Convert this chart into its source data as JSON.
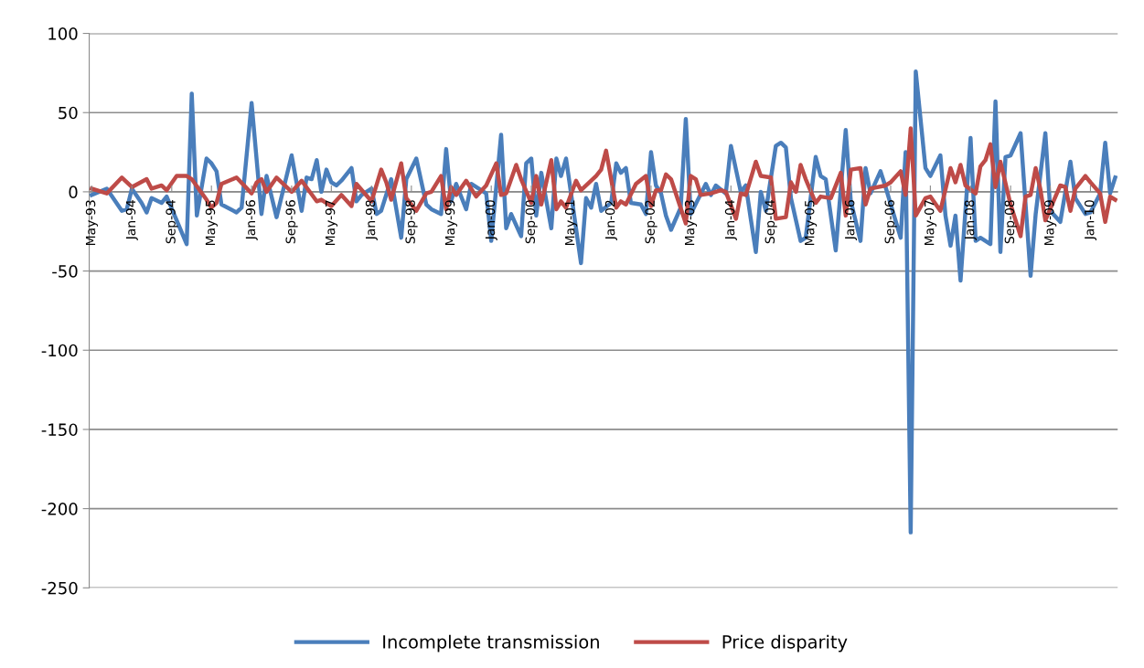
{
  "chart_data": {
    "type": "line",
    "series": [
      {
        "name": "Incomplete transmission",
        "color": "#4a7ebb",
        "x": [
          "1993-05",
          "1993-08",
          "1993-11",
          "1993-12",
          "1994-01",
          "1994-03",
          "1994-04",
          "1994-05",
          "1994-07",
          "1994-08",
          "1994-12",
          "1995-01",
          "1995-02",
          "1995-04",
          "1995-05",
          "1995-06",
          "1995-07",
          "1995-10",
          "1995-11",
          "1996-01",
          "1996-03",
          "1996-04",
          "1996-06",
          "1996-09",
          "1996-11",
          "1996-12",
          "1997-01",
          "1997-02",
          "1997-03",
          "1997-04",
          "1997-05",
          "1997-06",
          "1997-07",
          "1997-09",
          "1997-10",
          "1997-11",
          "1998-01",
          "1998-02",
          "1998-03",
          "1998-05",
          "1998-07",
          "1998-08",
          "1998-10",
          "1998-12",
          "1999-01",
          "1999-03",
          "1999-04",
          "1999-05",
          "1999-06",
          "1999-08",
          "1999-09",
          "1999-12",
          "2000-01",
          "2000-03",
          "2000-04",
          "2000-05",
          "2000-07",
          "2000-08",
          "2000-09",
          "2000-10",
          "2000-11",
          "2001-01",
          "2001-02",
          "2001-03",
          "2001-04",
          "2001-07",
          "2001-08",
          "2001-09",
          "2001-10",
          "2001-11",
          "2002-01",
          "2002-02",
          "2002-03",
          "2002-04",
          "2002-05",
          "2002-07",
          "2002-08",
          "2002-09",
          "2002-10",
          "2002-11",
          "2002-12",
          "2003-01",
          "2003-03",
          "2003-04",
          "2003-05",
          "2003-08",
          "2003-09",
          "2003-10",
          "2003-12",
          "2004-01",
          "2004-03",
          "2004-04",
          "2004-05",
          "2004-06",
          "2004-07",
          "2004-08",
          "2004-10",
          "2004-11",
          "2004-12",
          "2005-01",
          "2005-03",
          "2005-04",
          "2005-06",
          "2005-07",
          "2005-08",
          "2005-10",
          "2005-12",
          "2006-01",
          "2006-03",
          "2006-04",
          "2006-05",
          "2006-07",
          "2006-08",
          "2006-11",
          "2006-12",
          "2007-01",
          "2007-02",
          "2007-04",
          "2007-05",
          "2007-07",
          "2007-08",
          "2007-09",
          "2007-10",
          "2007-11",
          "2008-01",
          "2008-02",
          "2008-03",
          "2008-05",
          "2008-06",
          "2008-07",
          "2008-08",
          "2008-09",
          "2008-11",
          "2009-01",
          "2009-02",
          "2009-04",
          "2009-05",
          "2009-07",
          "2009-09",
          "2009-10",
          "2009-12",
          "2010-01",
          "2010-03",
          "2010-04",
          "2010-05",
          "2010-06"
        ],
        "values": [
          -2,
          2,
          -12,
          -11,
          2,
          -7,
          -13,
          -4,
          -7,
          -3,
          -33,
          62,
          -15,
          21,
          18,
          13,
          -8,
          -13,
          -10,
          56,
          -14,
          10,
          -16,
          23,
          -12,
          9,
          8,
          20,
          0,
          14,
          6,
          4,
          7,
          15,
          -6,
          -2,
          2,
          -14,
          -12,
          8,
          -29,
          8,
          21,
          -8,
          -11,
          -14,
          27,
          -6,
          5,
          -11,
          5,
          -1,
          -31,
          36,
          -23,
          -14,
          -28,
          18,
          21,
          -15,
          12,
          -23,
          21,
          10,
          21,
          -45,
          -4,
          -10,
          5,
          -12,
          -7,
          18,
          12,
          15,
          -7,
          -8,
          -14,
          25,
          4,
          -1,
          -15,
          -24,
          -10,
          46,
          -14,
          5,
          -2,
          4,
          -1,
          29,
          0,
          4,
          -17,
          -38,
          0,
          -12,
          29,
          31,
          28,
          -4,
          -31,
          -29,
          22,
          10,
          8,
          -37,
          39,
          -6,
          -31,
          15,
          -1,
          13,
          3,
          -29,
          25,
          -215,
          76,
          15,
          10,
          23,
          -15,
          -34,
          -15,
          -56,
          34,
          -31,
          -29,
          -33,
          57,
          -38,
          22,
          23,
          37,
          -53,
          -14,
          37,
          -12,
          -19,
          19,
          -4,
          -14,
          -13,
          -1,
          31,
          -1,
          9
        ]
      },
      {
        "name": "Price disparity",
        "color": "#be4b48",
        "x": [
          "1993-05",
          "1993-08",
          "1993-11",
          "1994-01",
          "1994-04",
          "1994-05",
          "1994-07",
          "1994-08",
          "1994-10",
          "1994-12",
          "1995-01",
          "1995-04",
          "1995-05",
          "1995-06",
          "1995-07",
          "1995-10",
          "1996-01",
          "1996-02",
          "1996-03",
          "1996-04",
          "1996-06",
          "1996-09",
          "1996-11",
          "1997-02",
          "1997-03",
          "1997-05",
          "1997-07",
          "1997-09",
          "1997-10",
          "1998-01",
          "1998-03",
          "1998-04",
          "1998-05",
          "1998-07",
          "1998-08",
          "1998-10",
          "1998-12",
          "1999-01",
          "1999-03",
          "1999-04",
          "1999-05",
          "1999-06",
          "1999-08",
          "1999-10",
          "1999-12",
          "2000-02",
          "2000-03",
          "2000-04",
          "2000-06",
          "2000-07",
          "2000-09",
          "2000-10",
          "2000-11",
          "2001-01",
          "2001-02",
          "2001-03",
          "2001-04",
          "2001-06",
          "2001-07",
          "2001-10",
          "2001-11",
          "2001-12",
          "2002-02",
          "2002-03",
          "2002-04",
          "2002-06",
          "2002-08",
          "2002-09",
          "2002-10",
          "2002-11",
          "2002-12",
          "2003-01",
          "2003-04",
          "2003-05",
          "2003-06",
          "2003-07",
          "2003-09",
          "2003-11",
          "2003-12",
          "2004-02",
          "2004-03",
          "2004-04",
          "2004-06",
          "2004-07",
          "2004-09",
          "2004-10",
          "2004-12",
          "2005-01",
          "2005-02",
          "2005-03",
          "2005-04",
          "2005-06",
          "2005-07",
          "2005-09",
          "2005-11",
          "2005-12",
          "2006-01",
          "2006-03",
          "2006-04",
          "2006-05",
          "2006-08",
          "2006-09",
          "2006-11",
          "2006-12",
          "2007-01",
          "2007-02",
          "2007-04",
          "2007-05",
          "2007-07",
          "2007-09",
          "2007-10",
          "2007-11",
          "2007-12",
          "2008-02",
          "2008-03",
          "2008-04",
          "2008-05",
          "2008-06",
          "2008-07",
          "2008-09",
          "2008-11",
          "2008-12",
          "2009-01",
          "2009-02",
          "2009-03",
          "2009-04",
          "2009-07",
          "2009-08",
          "2009-09",
          "2009-10",
          "2009-12",
          "2010-01",
          "2010-03",
          "2010-04",
          "2010-05",
          "2010-06"
        ],
        "values": [
          2,
          -1,
          9,
          3,
          8,
          2,
          4,
          1,
          10,
          10,
          8,
          -5,
          -10,
          -7,
          5,
          9,
          -1,
          6,
          8,
          0,
          9,
          0,
          7,
          -6,
          -5,
          -9,
          -2,
          -9,
          5,
          -6,
          14,
          6,
          -5,
          18,
          -4,
          -12,
          -1,
          0,
          10,
          -11,
          3,
          -2,
          7,
          -3,
          4,
          18,
          -2,
          -1,
          17,
          8,
          -7,
          10,
          -8,
          20,
          -11,
          -6,
          -10,
          7,
          1,
          10,
          14,
          26,
          -10,
          -6,
          -8,
          5,
          10,
          -9,
          1,
          1,
          11,
          8,
          -20,
          10,
          8,
          -2,
          -1,
          1,
          0,
          -17,
          -1,
          -2,
          19,
          10,
          9,
          -17,
          -16,
          6,
          0,
          17,
          8,
          -7,
          -3,
          -4,
          12,
          -15,
          14,
          15,
          -8,
          2,
          4,
          6,
          13,
          -2,
          40,
          -15,
          -4,
          -3,
          -12,
          15,
          6,
          17,
          4,
          -1,
          16,
          20,
          30,
          3,
          19,
          -8,
          -28,
          -3,
          -2,
          15,
          2,
          -18,
          4,
          3,
          -12,
          2,
          10,
          6,
          -1,
          -19,
          -3,
          -5
        ]
      }
    ],
    "xlim": [
      "1993-04-16",
      "2010-06-16"
    ],
    "xticks": [
      {
        "value": "1993-05",
        "label": "May-93"
      },
      {
        "value": "1994-01",
        "label": "Jan-94"
      },
      {
        "value": "1994-09",
        "label": "Sep-94"
      },
      {
        "value": "1995-05",
        "label": "May-95"
      },
      {
        "value": "1996-01",
        "label": "Jan-96"
      },
      {
        "value": "1996-09",
        "label": "Sep-96"
      },
      {
        "value": "1997-05",
        "label": "May-97"
      },
      {
        "value": "1998-01",
        "label": "Jan-98"
      },
      {
        "value": "1998-09",
        "label": "Sep-98"
      },
      {
        "value": "1999-05",
        "label": "May-99"
      },
      {
        "value": "2000-01",
        "label": "Jan-00"
      },
      {
        "value": "2000-09",
        "label": "Sep-00"
      },
      {
        "value": "2001-05",
        "label": "May-01"
      },
      {
        "value": "2002-01",
        "label": "Jan-02"
      },
      {
        "value": "2002-09",
        "label": "Sep-02"
      },
      {
        "value": "2003-05",
        "label": "May-03"
      },
      {
        "value": "2004-01",
        "label": "Jan-04"
      },
      {
        "value": "2004-09",
        "label": "Sep-04"
      },
      {
        "value": "2005-05",
        "label": "May-05"
      },
      {
        "value": "2006-01",
        "label": "Jan-06"
      },
      {
        "value": "2006-09",
        "label": "Sep-06"
      },
      {
        "value": "2007-05",
        "label": "May-07"
      },
      {
        "value": "2008-01",
        "label": "Jan-08"
      },
      {
        "value": "2008-09",
        "label": "Sep-08"
      },
      {
        "value": "2009-05",
        "label": "May-09"
      },
      {
        "value": "2010-01",
        "label": "Jan-10"
      }
    ],
    "ylim": [
      -250,
      100
    ],
    "yticks": [
      -250,
      -200,
      -150,
      -100,
      -50,
      0,
      50,
      100
    ],
    "grid": "y",
    "legend": "bottom"
  }
}
